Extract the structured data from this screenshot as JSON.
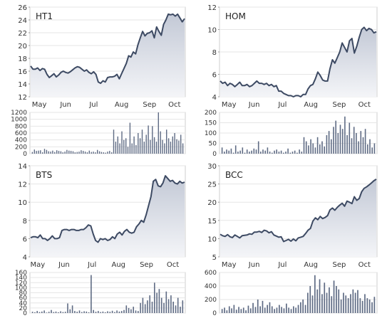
{
  "chart_data": [
    {
      "type": "area",
      "title": "HT1",
      "price_ylim": [
        12,
        26
      ],
      "price_yticks": [
        12,
        14,
        16,
        18,
        20,
        22,
        24,
        26
      ],
      "x_ticks": [
        "May",
        "Jun",
        "Jul",
        "Aug",
        "Sep",
        "Oct"
      ],
      "x_tick_positions": [
        0.06,
        0.23,
        0.41,
        0.59,
        0.77,
        0.93
      ],
      "volume_ylim": [
        0,
        1200
      ],
      "volume_yticks": [
        0,
        200,
        400,
        600,
        800,
        1000,
        1200
      ],
      "price_series": [
        16.8,
        16.3,
        16.3,
        16.5,
        16.1,
        16.4,
        16.3,
        15.5,
        15.0,
        15.3,
        15.6,
        15.1,
        15.4,
        15.8,
        16.0,
        15.8,
        15.7,
        15.9,
        16.2,
        16.5,
        16.7,
        16.6,
        16.3,
        16.0,
        16.2,
        15.8,
        15.6,
        15.9,
        15.5,
        14.3,
        14.1,
        14.5,
        14.3,
        15.0,
        15.1,
        15.1,
        15.2,
        15.5,
        14.8,
        15.6,
        16.4,
        17.2,
        18.4,
        18.2,
        19.0,
        18.7,
        20.1,
        21.2,
        22.2,
        21.5,
        21.9,
        22.0,
        22.3,
        21.2,
        22.9,
        22.2,
        21.6,
        23.3,
        24.0,
        24.9,
        24.8,
        24.9,
        24.6,
        24.9,
        24.3,
        23.7,
        24.2
      ],
      "volume_series": [
        50,
        120,
        80,
        90,
        100,
        40,
        140,
        110,
        70,
        60,
        90,
        50,
        100,
        80,
        70,
        40,
        60,
        110,
        90,
        80,
        70,
        40,
        50,
        60,
        100,
        80,
        60,
        40,
        90,
        50,
        60,
        40,
        110,
        70,
        50,
        40,
        30,
        60,
        80,
        40,
        700,
        350,
        500,
        300,
        650,
        400,
        450,
        200,
        900,
        300,
        500,
        250,
        600,
        450,
        700,
        350,
        550,
        820,
        400,
        800,
        480,
        350,
        1200,
        650,
        400,
        300,
        700,
        450,
        350,
        500,
        600,
        420,
        380,
        550,
        300
      ]
    },
    {
      "type": "area",
      "title": "HOM",
      "price_ylim": [
        4,
        12
      ],
      "price_yticks": [
        4,
        6,
        8,
        10,
        12
      ],
      "x_ticks": [
        "May",
        "Jun",
        "Jul",
        "Aug",
        "Sep",
        "Oct"
      ],
      "x_tick_positions": [
        0.06,
        0.22,
        0.4,
        0.58,
        0.76,
        0.92
      ],
      "volume_ylim": [
        0,
        200
      ],
      "volume_yticks": [
        0,
        50,
        100,
        150,
        200
      ],
      "price_series": [
        5.4,
        5.2,
        5.3,
        5.0,
        5.2,
        5.1,
        4.9,
        5.1,
        5.3,
        5.0,
        5.0,
        5.1,
        4.9,
        5.0,
        5.2,
        5.4,
        5.2,
        5.2,
        5.1,
        5.2,
        5.0,
        5.1,
        4.9,
        5.0,
        4.5,
        4.5,
        4.3,
        4.2,
        4.1,
        4.1,
        4.0,
        4.1,
        4.1,
        4.0,
        4.2,
        4.2,
        4.7,
        5.0,
        5.1,
        5.6,
        6.2,
        5.9,
        5.5,
        5.4,
        5.4,
        6.5,
        7.3,
        7.0,
        7.5,
        8.0,
        8.8,
        8.4,
        8.0,
        9.0,
        9.2,
        7.9,
        8.5,
        9.3,
        10.0,
        10.2,
        9.9,
        10.1,
        10.0,
        9.7,
        9.8
      ],
      "volume_series": [
        30,
        10,
        20,
        15,
        25,
        5,
        40,
        10,
        15,
        30,
        5,
        20,
        10,
        15,
        25,
        20,
        60,
        10,
        20,
        15,
        30,
        10,
        5,
        15,
        20,
        10,
        15,
        5,
        10,
        25,
        5,
        10,
        15,
        5,
        20,
        10,
        80,
        60,
        40,
        70,
        50,
        30,
        80,
        45,
        60,
        35,
        90,
        110,
        70,
        130,
        160,
        100,
        140,
        120,
        180,
        90,
        150,
        75,
        130,
        100,
        60,
        110,
        80,
        120,
        45,
        70,
        30,
        50
      ]
    },
    {
      "type": "area",
      "title": "BTS",
      "price_ylim": [
        4,
        14
      ],
      "price_yticks": [
        4,
        6,
        8,
        10,
        12,
        14
      ],
      "x_ticks": [
        "May",
        "Jun",
        "Jul",
        "Aug",
        "Sep",
        "Oct"
      ],
      "x_tick_positions": [
        0.05,
        0.22,
        0.4,
        0.57,
        0.75,
        0.92
      ],
      "volume_ylim": [
        0,
        160
      ],
      "volume_yticks": [
        0,
        20,
        40,
        60,
        80,
        100,
        120,
        140,
        160
      ],
      "price_series": [
        6.1,
        6.2,
        6.2,
        6.1,
        6.4,
        6.0,
        6.0,
        5.8,
        6.0,
        6.3,
        6.0,
        6.0,
        6.1,
        6.9,
        7.0,
        7.0,
        6.9,
        7.0,
        7.0,
        6.9,
        6.9,
        7.0,
        7.0,
        7.2,
        7.5,
        7.4,
        6.5,
        5.8,
        5.6,
        6.0,
        5.9,
        6.0,
        5.8,
        5.9,
        6.2,
        6.0,
        6.5,
        6.7,
        6.4,
        6.8,
        7.0,
        6.7,
        6.6,
        6.7,
        7.3,
        7.6,
        8.0,
        7.8,
        8.6,
        9.6,
        10.6,
        12.3,
        12.5,
        11.8,
        11.7,
        12.1,
        12.9,
        12.6,
        12.3,
        12.4,
        12.1,
        12.0,
        12.3,
        12.1,
        12.2
      ],
      "volume_series": [
        5,
        3,
        8,
        4,
        6,
        10,
        2,
        5,
        12,
        4,
        6,
        3,
        7,
        4,
        5,
        38,
        15,
        30,
        8,
        5,
        10,
        4,
        7,
        6,
        3,
        150,
        12,
        5,
        8,
        4,
        6,
        3,
        7,
        5,
        9,
        4,
        10,
        6,
        8,
        12,
        30,
        20,
        15,
        25,
        10,
        8,
        40,
        60,
        35,
        50,
        70,
        45,
        120,
        80,
        95,
        60,
        40,
        85,
        55,
        70,
        45,
        30,
        60,
        25,
        50
      ]
    },
    {
      "type": "area",
      "title": "BCC",
      "price_ylim": [
        5,
        30
      ],
      "price_yticks": [
        5,
        10,
        15,
        20,
        25,
        30
      ],
      "x_ticks": [
        "May",
        "Jun",
        "Jul",
        "Aug",
        "Sep",
        "Oct"
      ],
      "x_tick_positions": [
        0.06,
        0.22,
        0.4,
        0.58,
        0.76,
        0.92
      ],
      "volume_ylim": [
        0,
        600
      ],
      "volume_yticks": [
        0,
        200,
        400,
        600
      ],
      "price_series": [
        11.2,
        10.8,
        10.6,
        11.1,
        10.5,
        10.3,
        11.0,
        10.6,
        10.2,
        10.8,
        10.9,
        11.0,
        11.3,
        11.2,
        11.8,
        11.8,
        12.0,
        11.7,
        12.3,
        12.1,
        11.6,
        11.9,
        11.0,
        10.7,
        10.4,
        10.5,
        9.2,
        9.5,
        9.8,
        9.3,
        9.9,
        9.4,
        10.2,
        10.4,
        10.6,
        11.4,
        12.3,
        12.8,
        14.8,
        15.7,
        15.2,
        16.1,
        15.5,
        15.8,
        16.3,
        17.9,
        18.4,
        17.8,
        18.6,
        19.2,
        19.7,
        18.9,
        20.3,
        20.0,
        19.6,
        21.5,
        20.5,
        21.0,
        22.9,
        23.8,
        24.2,
        24.7,
        25.3,
        25.9,
        26.3
      ],
      "volume_series": [
        60,
        80,
        40,
        100,
        70,
        120,
        50,
        90,
        60,
        80,
        40,
        110,
        70,
        150,
        90,
        200,
        100,
        180,
        80,
        120,
        160,
        100,
        60,
        80,
        120,
        90,
        70,
        140,
        80,
        60,
        100,
        80,
        120,
        160,
        200,
        120,
        300,
        400,
        260,
        560,
        350,
        500,
        280,
        450,
        300,
        380,
        250,
        480,
        400,
        350,
        200,
        300,
        260,
        220,
        280,
        350,
        300,
        340,
        220,
        180,
        280,
        220,
        200,
        160,
        240
      ]
    }
  ]
}
